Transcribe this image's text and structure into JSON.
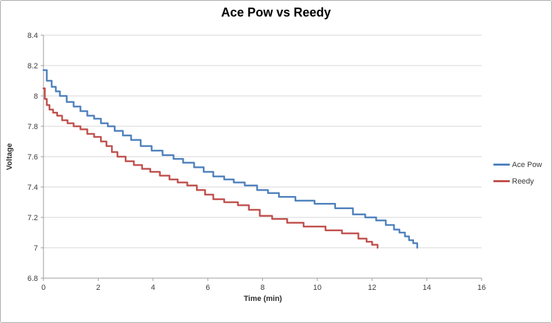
{
  "chart_data": {
    "type": "line",
    "title": "Ace Pow vs Reedy",
    "xlabel": "Time (min)",
    "ylabel": "Voltage",
    "xlim": [
      0,
      16
    ],
    "ylim": [
      6.8,
      8.4
    ],
    "x_ticks": [
      0,
      2,
      4,
      6,
      8,
      10,
      12,
      14,
      16
    ],
    "x_tick_labels": [
      "0",
      "2",
      "4",
      "6",
      "8",
      "10",
      "12",
      "14",
      "16"
    ],
    "y_ticks": [
      6.8,
      7.0,
      7.2,
      7.4,
      7.6,
      7.8,
      8.0,
      8.2,
      8.4
    ],
    "y_tick_labels": [
      "6.8",
      "7",
      "7.2",
      "7.4",
      "7.6",
      "7.8",
      "8",
      "8.2",
      "8.4"
    ],
    "grid": "horizontal",
    "legend_position": "right",
    "line_style": "step-post",
    "colors": {
      "gridline": "#d4d4d4",
      "axis": "#9a9a9a",
      "tick_label": "#3a3a3a",
      "title": "#000000"
    },
    "series": [
      {
        "name": "Ace Pow",
        "color": "#4F81BD",
        "points": [
          [
            0,
            8.17
          ],
          [
            0.12,
            8.1
          ],
          [
            0.3,
            8.06
          ],
          [
            0.45,
            8.03
          ],
          [
            0.6,
            8.0
          ],
          [
            0.85,
            7.96
          ],
          [
            1.1,
            7.93
          ],
          [
            1.35,
            7.9
          ],
          [
            1.6,
            7.87
          ],
          [
            1.85,
            7.85
          ],
          [
            2.1,
            7.82
          ],
          [
            2.35,
            7.8
          ],
          [
            2.6,
            7.77
          ],
          [
            2.9,
            7.74
          ],
          [
            3.2,
            7.71
          ],
          [
            3.55,
            7.67
          ],
          [
            3.95,
            7.64
          ],
          [
            4.35,
            7.61
          ],
          [
            4.75,
            7.585
          ],
          [
            5.1,
            7.56
          ],
          [
            5.5,
            7.53
          ],
          [
            5.85,
            7.5
          ],
          [
            6.2,
            7.47
          ],
          [
            6.6,
            7.45
          ],
          [
            6.95,
            7.43
          ],
          [
            7.35,
            7.41
          ],
          [
            7.8,
            7.38
          ],
          [
            8.2,
            7.36
          ],
          [
            8.6,
            7.335
          ],
          [
            9.2,
            7.31
          ],
          [
            9.9,
            7.29
          ],
          [
            10.65,
            7.26
          ],
          [
            11.3,
            7.22
          ],
          [
            11.75,
            7.2
          ],
          [
            12.15,
            7.18
          ],
          [
            12.5,
            7.15
          ],
          [
            12.8,
            7.12
          ],
          [
            13.0,
            7.1
          ],
          [
            13.2,
            7.075
          ],
          [
            13.35,
            7.05
          ],
          [
            13.5,
            7.03
          ],
          [
            13.65,
            7.0
          ]
        ]
      },
      {
        "name": "Reedy",
        "color": "#C0504D",
        "points": [
          [
            0,
            8.05
          ],
          [
            0.05,
            7.98
          ],
          [
            0.12,
            7.94
          ],
          [
            0.22,
            7.91
          ],
          [
            0.35,
            7.89
          ],
          [
            0.5,
            7.87
          ],
          [
            0.68,
            7.84
          ],
          [
            0.88,
            7.82
          ],
          [
            1.1,
            7.8
          ],
          [
            1.35,
            7.78
          ],
          [
            1.6,
            7.75
          ],
          [
            1.85,
            7.73
          ],
          [
            2.1,
            7.7
          ],
          [
            2.3,
            7.67
          ],
          [
            2.5,
            7.63
          ],
          [
            2.7,
            7.6
          ],
          [
            3.0,
            7.57
          ],
          [
            3.3,
            7.545
          ],
          [
            3.6,
            7.52
          ],
          [
            3.9,
            7.5
          ],
          [
            4.25,
            7.475
          ],
          [
            4.6,
            7.45
          ],
          [
            4.9,
            7.43
          ],
          [
            5.25,
            7.41
          ],
          [
            5.6,
            7.38
          ],
          [
            5.9,
            7.35
          ],
          [
            6.2,
            7.32
          ],
          [
            6.6,
            7.3
          ],
          [
            7.1,
            7.28
          ],
          [
            7.5,
            7.25
          ],
          [
            7.9,
            7.21
          ],
          [
            8.35,
            7.19
          ],
          [
            8.9,
            7.165
          ],
          [
            9.5,
            7.14
          ],
          [
            10.3,
            7.115
          ],
          [
            10.9,
            7.095
          ],
          [
            11.5,
            7.06
          ],
          [
            11.8,
            7.04
          ],
          [
            12.0,
            7.02
          ],
          [
            12.2,
            7.0
          ]
        ]
      }
    ]
  }
}
